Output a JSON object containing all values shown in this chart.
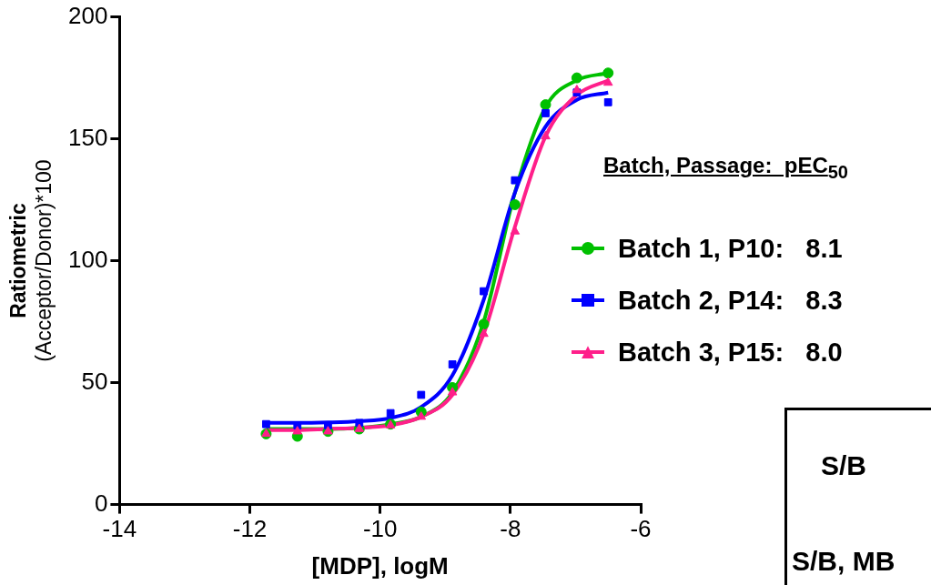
{
  "chart_data": {
    "type": "scatter",
    "xlabel": "[MDP], logM",
    "ylabel": "Ratiometric\n(Acceptor/Donor)*100",
    "legend_title": "Batch, Passage:  pEC$_{50}$",
    "legend": "right",
    "grid": false,
    "x": [
      -11.75,
      -11.27,
      -10.8,
      -10.32,
      -9.84,
      -9.37,
      -8.89,
      -8.41,
      -7.93,
      -7.46,
      -6.98,
      -6.5
    ],
    "xlim": [
      -14,
      -6
    ],
    "xticks": [
      -14,
      -12,
      -10,
      -8,
      -6
    ],
    "ylim": [
      0,
      200
    ],
    "yticks": [
      0,
      50,
      100,
      150,
      200
    ],
    "series": [
      {
        "name": "Batch 1, P10:   8.1",
        "color": "#00c000",
        "marker": "circle",
        "values": [
          29,
          28,
          30,
          31,
          33,
          38,
          48,
          74,
          123,
          164,
          175,
          177
        ]
      },
      {
        "name": "Batch 2, P14:   8.3",
        "color": "#0000ff",
        "marker": "square",
        "values": [
          33,
          32.5,
          32.5,
          33.5,
          37.5,
          45,
          57.5,
          87.5,
          133,
          160.5,
          169,
          165
        ]
      },
      {
        "name": "Batch 3, P15:   8.0",
        "color": "#ff1f8a",
        "marker": "triangle",
        "values": [
          29,
          30,
          30,
          31,
          32.5,
          36,
          46,
          70,
          112,
          151,
          170,
          173
        ]
      },
      {
        "type": "line",
        "color": "#00c000",
        "values": [
          31,
          31,
          31,
          31.5,
          33,
          36,
          46,
          75,
          128,
          163,
          174,
          177
        ]
      },
      {
        "type": "line",
        "color": "#0000ff",
        "values": [
          33.5,
          33.5,
          33.7,
          34.2,
          35.5,
          40,
          53,
          84,
          128,
          155,
          166,
          169
        ]
      },
      {
        "type": "line",
        "color": "#ff1f8a",
        "values": [
          30.5,
          30.5,
          31,
          31.5,
          32.5,
          36,
          45,
          70,
          114,
          151,
          168,
          174
        ]
      }
    ],
    "annotations": [
      "S/B",
      "S/B, MB"
    ]
  }
}
